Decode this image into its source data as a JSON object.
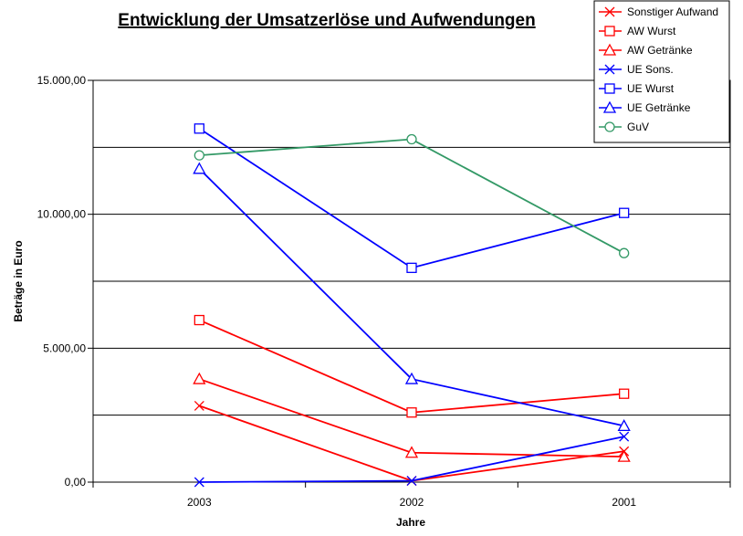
{
  "chart_data": {
    "type": "line",
    "title": "Entwicklung der Umsatzerlöse und Aufwendungen",
    "xlabel": "Jahre",
    "ylabel": "Beträge in Euro",
    "categories": [
      "2003",
      "2002",
      "2001"
    ],
    "ylim": [
      0,
      15000
    ],
    "yticks": [
      "0,00",
      "5.000,00",
      "10.000,00",
      "15.000,00"
    ],
    "ytick_values": [
      0,
      5000,
      10000,
      15000
    ],
    "gridlines": [
      2500,
      7500,
      10000,
      12500,
      5000
    ],
    "grid": true,
    "legend_position": "top-right",
    "series": [
      {
        "name": "Sonstiger Aufwand",
        "color": "#ff0000",
        "marker": "x",
        "values": [
          2850,
          50,
          1150
        ]
      },
      {
        "name": "AW Wurst",
        "color": "#ff0000",
        "marker": "square",
        "values": [
          6050,
          2600,
          3300
        ]
      },
      {
        "name": "AW Getränke",
        "color": "#ff0000",
        "marker": "triangle",
        "values": [
          3850,
          1100,
          950
        ]
      },
      {
        "name": "UE Sons.",
        "color": "#0000ff",
        "marker": "x",
        "values": [
          0,
          50,
          1700
        ]
      },
      {
        "name": "UE Wurst",
        "color": "#0000ff",
        "marker": "square",
        "values": [
          13200,
          8000,
          10050
        ]
      },
      {
        "name": "UE Getränke",
        "color": "#0000ff",
        "marker": "triangle",
        "values": [
          11700,
          3850,
          2100
        ]
      },
      {
        "name": "GuV",
        "color": "#339966",
        "marker": "circle",
        "values": [
          12200,
          12800,
          8550
        ]
      }
    ]
  }
}
